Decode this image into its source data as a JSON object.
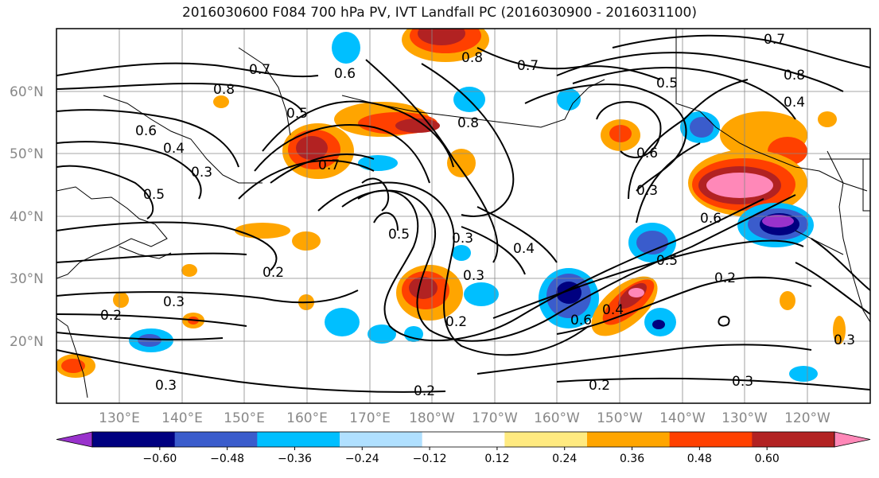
{
  "title": "2016030600 F084 700 hPa PV, IVT Landfall PC (2016030900 - 2016031100)",
  "lat_labels": [
    "60°N",
    "50°N",
    "40°N",
    "30°N",
    "20°N"
  ],
  "lon_labels": [
    "130°E",
    "140°E",
    "150°E",
    "160°E",
    "170°E",
    "180°W",
    "170°W",
    "160°W",
    "150°W",
    "140°W",
    "130°W",
    "120°W"
  ],
  "contour_labels": [
    "0.7",
    "0.8",
    "0.5",
    "0.6",
    "0.4",
    "0.3",
    "0.5",
    "0.7",
    "0.6",
    "0.8",
    "0.7",
    "0.8",
    "0.7",
    "0.8",
    "0.4",
    "0.5",
    "0.6",
    "0.3",
    "0.6",
    "0.5",
    "0.2",
    "0.3",
    "0.4",
    "0.3",
    "0.5",
    "0.2",
    "0.3",
    "0.2",
    "0.6",
    "0.4",
    "0.2",
    "0.3",
    "0.2",
    "0.3",
    "0.2",
    "0.3"
  ],
  "colorbar": {
    "colors": [
      "#9932cc",
      "#000080",
      "#3a5ccc",
      "#00bfff",
      "#b0e0ff",
      "#ffffff",
      "#ffea80",
      "#ffa500",
      "#ff4000",
      "#b22222",
      "#ff88b8"
    ],
    "ticks": [
      "−0.60",
      "−0.48",
      "−0.36",
      "−0.24",
      "−0.12",
      "0.12",
      "0.24",
      "0.36",
      "0.48",
      "0.60"
    ]
  }
}
